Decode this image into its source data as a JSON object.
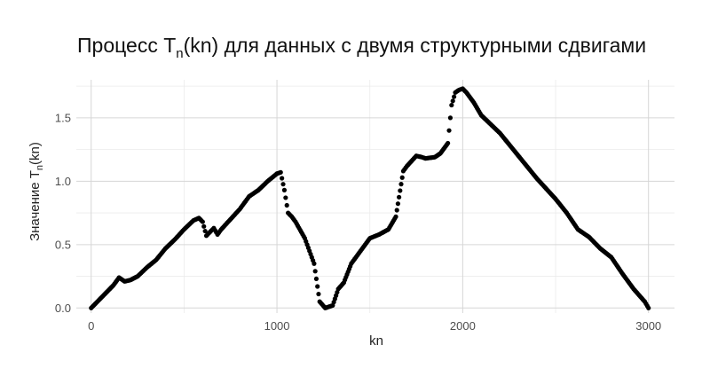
{
  "chart_data": {
    "type": "scatter",
    "title": {
      "main": "Процесс T",
      "sub": "n",
      "rest": "(kn) для данных с двумя структурными сдвигами"
    },
    "xlabel": "kn",
    "ylabel": {
      "main": "Значение T",
      "sub": "n",
      "rest": "(kn)"
    },
    "xlim": [
      -80,
      3140
    ],
    "ylim": [
      -0.04,
      1.8
    ],
    "xticks": [
      0,
      1000,
      2000,
      3000
    ],
    "xtick_labels": [
      "0",
      "1000",
      "2000",
      "3000"
    ],
    "yticks": [
      0.0,
      0.5,
      1.0,
      1.5
    ],
    "ytick_labels": [
      "0.0",
      "0.5",
      "1.0",
      "1.5"
    ],
    "grid": true,
    "color": "#000000",
    "series": [
      {
        "x": [
          0,
          40,
          80,
          120,
          150,
          180,
          210,
          250,
          300,
          350,
          400,
          450,
          500,
          550,
          580,
          600,
          620,
          640,
          660,
          680,
          700,
          750,
          800,
          850,
          900,
          950,
          1000,
          1020,
          1040,
          1060,
          1080,
          1100,
          1150,
          1200,
          1230,
          1260,
          1300,
          1330,
          1360,
          1400,
          1450,
          1500,
          1550,
          1600,
          1640,
          1680,
          1700,
          1750,
          1780,
          1800,
          1850,
          1880,
          1920,
          1940,
          1960,
          1980,
          2000,
          2020,
          2060,
          2100,
          2150,
          2200,
          2300,
          2400,
          2500,
          2560,
          2620,
          2680,
          2740,
          2800,
          2860,
          2920,
          2980,
          3000
        ],
        "y": [
          0.0,
          0.06,
          0.12,
          0.18,
          0.24,
          0.21,
          0.22,
          0.25,
          0.32,
          0.38,
          0.47,
          0.54,
          0.62,
          0.69,
          0.71,
          0.68,
          0.57,
          0.6,
          0.63,
          0.58,
          0.62,
          0.7,
          0.78,
          0.88,
          0.93,
          1.0,
          1.06,
          1.07,
          0.93,
          0.75,
          0.72,
          0.68,
          0.55,
          0.35,
          0.05,
          0.0,
          0.02,
          0.15,
          0.2,
          0.35,
          0.45,
          0.55,
          0.58,
          0.62,
          0.72,
          1.08,
          1.12,
          1.2,
          1.19,
          1.18,
          1.19,
          1.22,
          1.3,
          1.6,
          1.7,
          1.72,
          1.73,
          1.7,
          1.62,
          1.52,
          1.45,
          1.38,
          1.2,
          1.02,
          0.86,
          0.75,
          0.62,
          0.56,
          0.47,
          0.4,
          0.27,
          0.15,
          0.05,
          0.0
        ]
      }
    ]
  }
}
